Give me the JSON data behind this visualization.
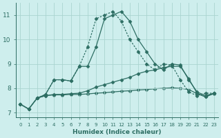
{
  "background_color": "#ceeeed",
  "grid_color": "#aad4d0",
  "line_color": "#2d6e63",
  "xlabel": "Humidex (Indice chaleur)",
  "xlim": [
    -0.5,
    23.5
  ],
  "ylim": [
    6.8,
    11.5
  ],
  "yticks": [
    7,
    8,
    9,
    10,
    11
  ],
  "xticks": [
    0,
    1,
    2,
    3,
    4,
    5,
    6,
    7,
    8,
    9,
    10,
    11,
    12,
    13,
    14,
    15,
    16,
    17,
    18,
    19,
    20,
    21,
    22,
    23
  ],
  "line1_x": [
    0,
    1,
    2,
    3,
    4,
    5,
    6,
    7,
    8,
    9,
    10,
    11,
    12,
    13,
    14,
    15,
    16,
    17,
    18,
    19,
    20,
    21,
    22,
    23
  ],
  "line1_y": [
    7.35,
    7.15,
    7.6,
    7.75,
    8.35,
    8.35,
    8.3,
    8.9,
    8.9,
    9.7,
    10.85,
    11.0,
    11.15,
    10.75,
    10.0,
    9.5,
    9.0,
    8.75,
    9.0,
    8.95,
    8.35,
    7.85,
    7.7,
    7.8
  ],
  "line2_x": [
    2,
    3,
    4,
    5,
    6,
    7,
    8,
    9,
    10,
    11,
    12,
    13,
    14,
    15,
    16,
    17,
    18,
    19,
    20,
    21,
    22,
    23
  ],
  "line2_y": [
    7.6,
    7.75,
    8.35,
    8.35,
    8.3,
    8.9,
    9.7,
    10.85,
    11.0,
    11.15,
    10.75,
    10.0,
    9.5,
    9.0,
    8.75,
    9.0,
    8.95,
    8.35,
    7.85,
    7.7,
    7.8,
    7.8
  ],
  "line3_x": [
    0,
    1,
    2,
    3,
    4,
    5,
    6,
    7,
    8,
    9,
    10,
    11,
    12,
    13,
    14,
    15,
    16,
    17,
    18,
    19,
    20,
    21,
    22,
    23
  ],
  "line3_y": [
    7.35,
    7.15,
    7.6,
    7.7,
    7.75,
    7.75,
    7.78,
    7.8,
    7.9,
    8.05,
    8.15,
    8.25,
    8.35,
    8.45,
    8.6,
    8.7,
    8.75,
    8.85,
    8.9,
    8.9,
    8.4,
    7.8,
    7.65,
    7.8
  ],
  "line4_x": [
    0,
    1,
    2,
    3,
    4,
    5,
    6,
    7,
    8,
    9,
    10,
    11,
    12,
    13,
    14,
    15,
    16,
    17,
    18,
    19,
    20,
    21,
    22,
    23
  ],
  "line4_y": [
    7.35,
    7.15,
    7.6,
    7.7,
    7.73,
    7.73,
    7.75,
    7.75,
    7.77,
    7.8,
    7.82,
    7.85,
    7.88,
    7.9,
    7.93,
    7.95,
    7.98,
    8.0,
    8.02,
    8.0,
    7.95,
    7.78,
    7.65,
    7.78
  ]
}
